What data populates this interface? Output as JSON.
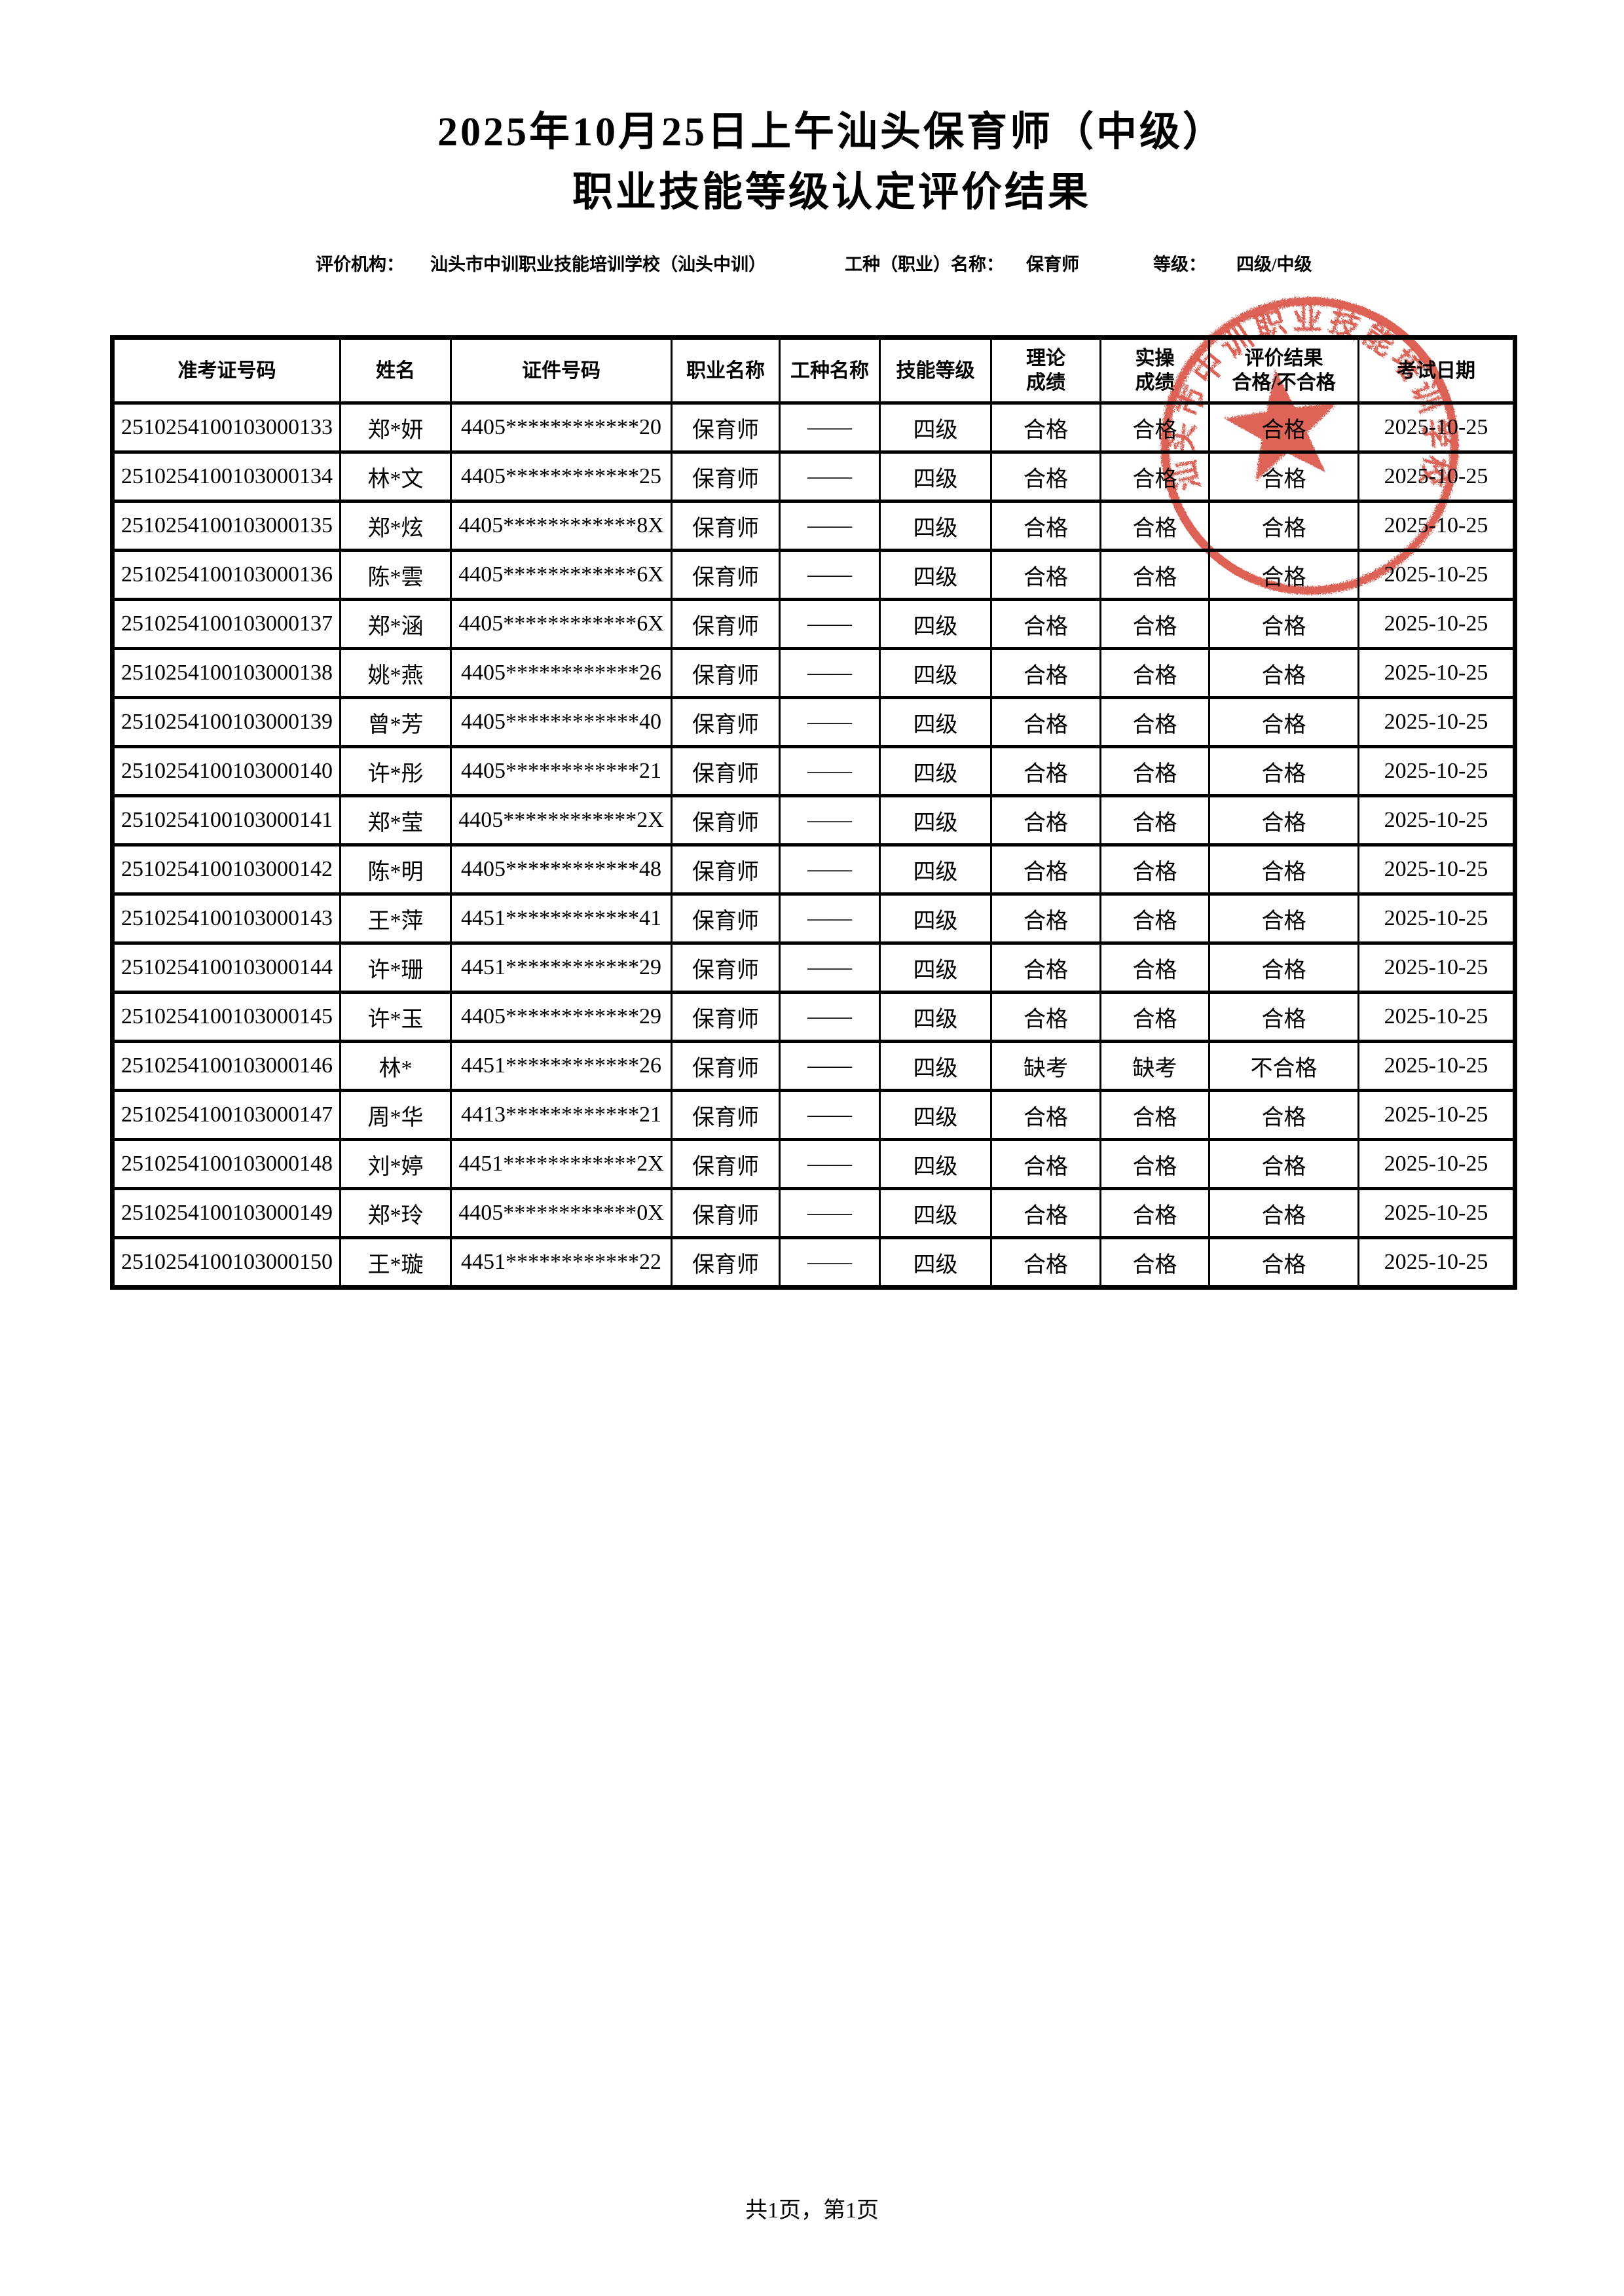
{
  "title": {
    "line1": "2025年10月25日上午汕头保育师（中级）",
    "line2": "职业技能等级认定评价结果"
  },
  "meta": {
    "org_label": "评价机构：",
    "org_value": "汕头市中训职业技能培训学校（汕头中训）",
    "job_label": "工种（职业）名称：",
    "job_value": "保育师",
    "level_label": "等级：",
    "level_value": "四级/中级"
  },
  "table": {
    "headers": [
      "准考证号码",
      "姓名",
      "证件号码",
      "职业名称",
      "工种名称",
      "技能等级",
      "理论\n成绩",
      "实操\n成绩",
      "评价结果\n合格/不合格",
      "考试日期"
    ],
    "keys": [
      "admission_no",
      "name",
      "id_no",
      "occupation",
      "work_type",
      "skill_level",
      "theory",
      "practice",
      "result",
      "exam_date"
    ],
    "rows": [
      {
        "admission_no": "2510254100103000133",
        "name": "郑*妍",
        "id_no": "4405************20",
        "occupation": "保育师",
        "work_type": "——",
        "skill_level": "四级",
        "theory": "合格",
        "practice": "合格",
        "result": "合格",
        "exam_date": "2025-10-25"
      },
      {
        "admission_no": "2510254100103000134",
        "name": "林*文",
        "id_no": "4405************25",
        "occupation": "保育师",
        "work_type": "——",
        "skill_level": "四级",
        "theory": "合格",
        "practice": "合格",
        "result": "合格",
        "exam_date": "2025-10-25"
      },
      {
        "admission_no": "2510254100103000135",
        "name": "郑*炫",
        "id_no": "4405************8X",
        "occupation": "保育师",
        "work_type": "——",
        "skill_level": "四级",
        "theory": "合格",
        "practice": "合格",
        "result": "合格",
        "exam_date": "2025-10-25"
      },
      {
        "admission_no": "2510254100103000136",
        "name": "陈*雲",
        "id_no": "4405************6X",
        "occupation": "保育师",
        "work_type": "——",
        "skill_level": "四级",
        "theory": "合格",
        "practice": "合格",
        "result": "合格",
        "exam_date": "2025-10-25"
      },
      {
        "admission_no": "2510254100103000137",
        "name": "郑*涵",
        "id_no": "4405************6X",
        "occupation": "保育师",
        "work_type": "——",
        "skill_level": "四级",
        "theory": "合格",
        "practice": "合格",
        "result": "合格",
        "exam_date": "2025-10-25"
      },
      {
        "admission_no": "2510254100103000138",
        "name": "姚*燕",
        "id_no": "4405************26",
        "occupation": "保育师",
        "work_type": "——",
        "skill_level": "四级",
        "theory": "合格",
        "practice": "合格",
        "result": "合格",
        "exam_date": "2025-10-25"
      },
      {
        "admission_no": "2510254100103000139",
        "name": "曾*芳",
        "id_no": "4405************40",
        "occupation": "保育师",
        "work_type": "——",
        "skill_level": "四级",
        "theory": "合格",
        "practice": "合格",
        "result": "合格",
        "exam_date": "2025-10-25"
      },
      {
        "admission_no": "2510254100103000140",
        "name": "许*彤",
        "id_no": "4405************21",
        "occupation": "保育师",
        "work_type": "——",
        "skill_level": "四级",
        "theory": "合格",
        "practice": "合格",
        "result": "合格",
        "exam_date": "2025-10-25"
      },
      {
        "admission_no": "2510254100103000141",
        "name": "郑*莹",
        "id_no": "4405************2X",
        "occupation": "保育师",
        "work_type": "——",
        "skill_level": "四级",
        "theory": "合格",
        "practice": "合格",
        "result": "合格",
        "exam_date": "2025-10-25"
      },
      {
        "admission_no": "2510254100103000142",
        "name": "陈*明",
        "id_no": "4405************48",
        "occupation": "保育师",
        "work_type": "——",
        "skill_level": "四级",
        "theory": "合格",
        "practice": "合格",
        "result": "合格",
        "exam_date": "2025-10-25"
      },
      {
        "admission_no": "2510254100103000143",
        "name": "王*萍",
        "id_no": "4451************41",
        "occupation": "保育师",
        "work_type": "——",
        "skill_level": "四级",
        "theory": "合格",
        "practice": "合格",
        "result": "合格",
        "exam_date": "2025-10-25"
      },
      {
        "admission_no": "2510254100103000144",
        "name": "许*珊",
        "id_no": "4451************29",
        "occupation": "保育师",
        "work_type": "——",
        "skill_level": "四级",
        "theory": "合格",
        "practice": "合格",
        "result": "合格",
        "exam_date": "2025-10-25"
      },
      {
        "admission_no": "2510254100103000145",
        "name": "许*玉",
        "id_no": "4405************29",
        "occupation": "保育师",
        "work_type": "——",
        "skill_level": "四级",
        "theory": "合格",
        "practice": "合格",
        "result": "合格",
        "exam_date": "2025-10-25"
      },
      {
        "admission_no": "2510254100103000146",
        "name": "林*",
        "id_no": "4451************26",
        "occupation": "保育师",
        "work_type": "——",
        "skill_level": "四级",
        "theory": "缺考",
        "practice": "缺考",
        "result": "不合格",
        "exam_date": "2025-10-25"
      },
      {
        "admission_no": "2510254100103000147",
        "name": "周*华",
        "id_no": "4413************21",
        "occupation": "保育师",
        "work_type": "——",
        "skill_level": "四级",
        "theory": "合格",
        "practice": "合格",
        "result": "合格",
        "exam_date": "2025-10-25"
      },
      {
        "admission_no": "2510254100103000148",
        "name": "刘*婷",
        "id_no": "4451************2X",
        "occupation": "保育师",
        "work_type": "——",
        "skill_level": "四级",
        "theory": "合格",
        "practice": "合格",
        "result": "合格",
        "exam_date": "2025-10-25"
      },
      {
        "admission_no": "2510254100103000149",
        "name": "郑*玲",
        "id_no": "4405************0X",
        "occupation": "保育师",
        "work_type": "——",
        "skill_level": "四级",
        "theory": "合格",
        "practice": "合格",
        "result": "合格",
        "exam_date": "2025-10-25"
      },
      {
        "admission_no": "2510254100103000150",
        "name": "王*璇",
        "id_no": "4451************22",
        "occupation": "保育师",
        "work_type": "——",
        "skill_level": "四级",
        "theory": "合格",
        "practice": "合格",
        "result": "合格",
        "exam_date": "2025-10-25"
      }
    ]
  },
  "stamp": {
    "arc_text": "汕头市中训职业技能培训学校",
    "color": "#d63a2c"
  },
  "footer": {
    "page_info": "共1页，第1页"
  }
}
